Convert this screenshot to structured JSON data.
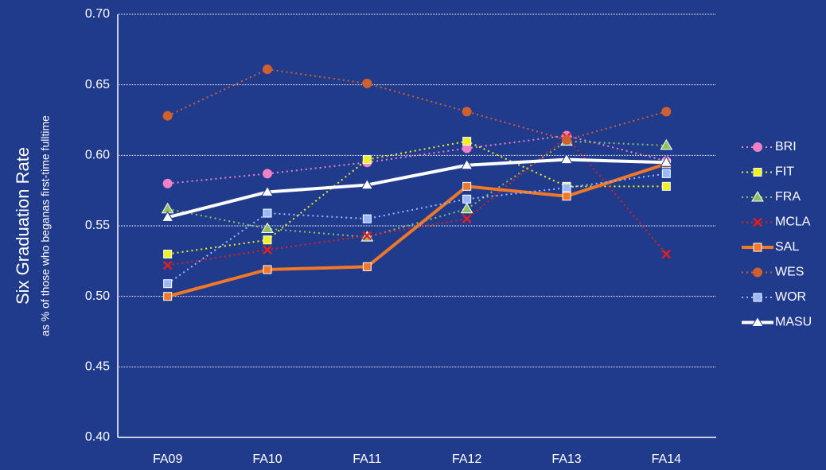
{
  "chart_data": {
    "type": "line",
    "y_label": "Six Graduation Rate",
    "y_sublabel": "as % of those who beganas first-time fulltime",
    "categories": [
      "FA09",
      "FA10",
      "FA11",
      "FA12",
      "FA13",
      "FA14"
    ],
    "ylim": [
      0.4,
      0.7
    ],
    "yticks": [
      {
        "value": 0.4,
        "label": "0.40"
      },
      {
        "value": 0.45,
        "label": "0.45"
      },
      {
        "value": 0.5,
        "label": "0.50"
      },
      {
        "value": 0.55,
        "label": "0.55"
      },
      {
        "value": 0.6,
        "label": "0.60"
      },
      {
        "value": 0.65,
        "label": "0.65"
      },
      {
        "value": 0.7,
        "label": "0.70"
      }
    ],
    "grid": true,
    "legend": "right",
    "series": [
      {
        "name": "BRI",
        "color": "#f080c8",
        "dash": "dotted",
        "marker": "circle",
        "values": [
          0.58,
          0.587,
          0.595,
          0.605,
          0.614,
          0.596
        ]
      },
      {
        "name": "FIT",
        "color": "#f0f020",
        "dash": "dotted",
        "marker": "square",
        "values": [
          0.53,
          0.54,
          0.597,
          0.61,
          0.578,
          0.578
        ]
      },
      {
        "name": "FRA",
        "color": "#90c060",
        "dash": "dotted",
        "marker": "triangle",
        "values": [
          0.562,
          0.548,
          0.542,
          0.562,
          0.61,
          0.607
        ]
      },
      {
        "name": "MCLA",
        "color": "#e02020",
        "dash": "dotted",
        "marker": "x",
        "values": [
          0.522,
          0.533,
          0.543,
          0.555,
          0.613,
          0.53
        ]
      },
      {
        "name": "SAL",
        "color": "#f07828",
        "dash": "solid",
        "marker": "square",
        "values": [
          0.5,
          0.519,
          0.521,
          0.578,
          0.571,
          0.594
        ]
      },
      {
        "name": "WES",
        "color": "#d06030",
        "dash": "dotted",
        "marker": "circle",
        "values": [
          0.628,
          0.661,
          0.651,
          0.631,
          0.611,
          0.631
        ]
      },
      {
        "name": "WOR",
        "color": "#9ab8ff",
        "dash": "dotted",
        "marker": "square",
        "values": [
          0.509,
          0.559,
          0.555,
          0.569,
          0.577,
          0.587
        ]
      },
      {
        "name": "MASU",
        "color": "#ffffff",
        "dash": "solid",
        "marker": "triangle",
        "values": [
          0.556,
          0.574,
          0.579,
          0.593,
          0.597,
          0.595
        ]
      }
    ]
  }
}
